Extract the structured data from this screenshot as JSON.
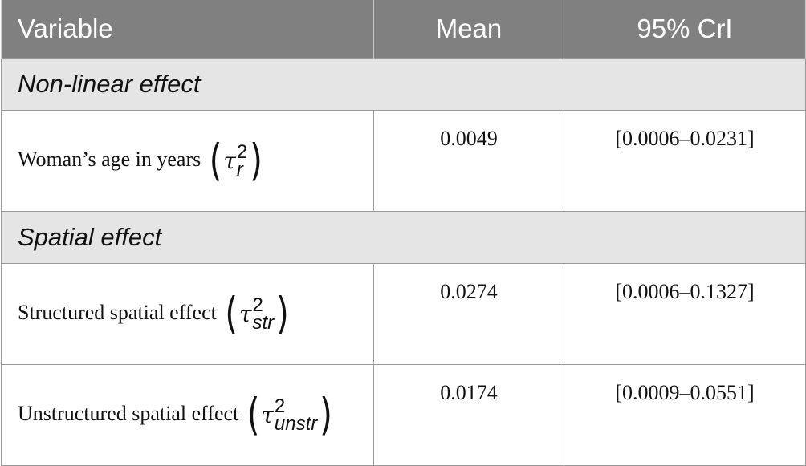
{
  "header": {
    "variable": "Variable",
    "mean": "Mean",
    "cri": "95% CrI"
  },
  "sections": [
    {
      "title": "Non-linear effect",
      "rows": [
        {
          "label": "Woman’s age in years",
          "symbol": "τ",
          "sup": "2",
          "sub": "r",
          "mean": "0.0049",
          "cri": "[0.0006–0.0231]"
        }
      ]
    },
    {
      "title": "Spatial effect",
      "rows": [
        {
          "label": "Structured spatial effect",
          "symbol": "τ",
          "sup": "2",
          "sub": "str",
          "mean": "0.0274",
          "cri": "[0.0006–0.1327]"
        },
        {
          "label": "Unstructured spatial effect",
          "symbol": "τ",
          "sup": "2",
          "sub": "unstr",
          "mean": "0.0174",
          "cri": "[0.0009–0.0551]"
        }
      ]
    }
  ]
}
